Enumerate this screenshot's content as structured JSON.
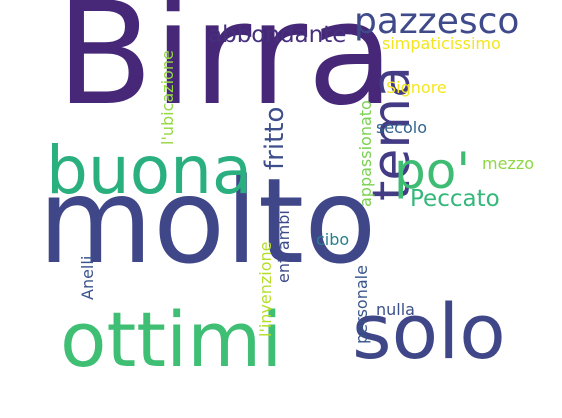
{
  "words": [
    {
      "text": "Birra",
      "color": "#472777",
      "orientation": "horizontal"
    },
    {
      "text": "molto",
      "color": "#404788",
      "orientation": "horizontal"
    },
    {
      "text": "ottimi",
      "color": "#3FBF74",
      "orientation": "horizontal"
    },
    {
      "text": "solo",
      "color": "#3F4788",
      "orientation": "horizontal"
    },
    {
      "text": "buona",
      "color": "#2AB07F",
      "orientation": "horizontal"
    },
    {
      "text": "tema",
      "color": "#433C84",
      "orientation": "vertical"
    },
    {
      "text": "po'",
      "color": "#3FBC73",
      "orientation": "horizontal"
    },
    {
      "text": "pazzesco",
      "color": "#3F4A8A",
      "orientation": "horizontal"
    },
    {
      "text": "abbondante",
      "color": "#46307E",
      "orientation": "horizontal"
    },
    {
      "text": "fritto",
      "color": "#3D4E8A",
      "orientation": "vertical"
    },
    {
      "text": "Peccato",
      "color": "#33B87A",
      "orientation": "horizontal"
    },
    {
      "text": "simpaticissimo",
      "color": "#F2E51D",
      "orientation": "horizontal"
    },
    {
      "text": "Signore",
      "color": "#F4E61E",
      "orientation": "horizontal"
    },
    {
      "text": "secolo",
      "color": "#33638D",
      "orientation": "horizontal"
    },
    {
      "text": "mezzo",
      "color": "#8FD744",
      "orientation": "horizontal"
    },
    {
      "text": "appassionato",
      "color": "#7AD151",
      "orientation": "vertical"
    },
    {
      "text": "l'ubicazione",
      "color": "#95D840",
      "orientation": "vertical"
    },
    {
      "text": "l'invenzione",
      "color": "#B5DE2B",
      "orientation": "vertical"
    },
    {
      "text": "entrambi",
      "color": "#3E4A89",
      "orientation": "vertical"
    },
    {
      "text": "cibo",
      "color": "#277F8E",
      "orientation": "horizontal"
    },
    {
      "text": "Anelli",
      "color": "#3A548C",
      "orientation": "vertical"
    },
    {
      "text": "personale",
      "color": "#39568C",
      "orientation": "vertical"
    },
    {
      "text": "nulla",
      "color": "#3C508B",
      "orientation": "horizontal"
    }
  ]
}
